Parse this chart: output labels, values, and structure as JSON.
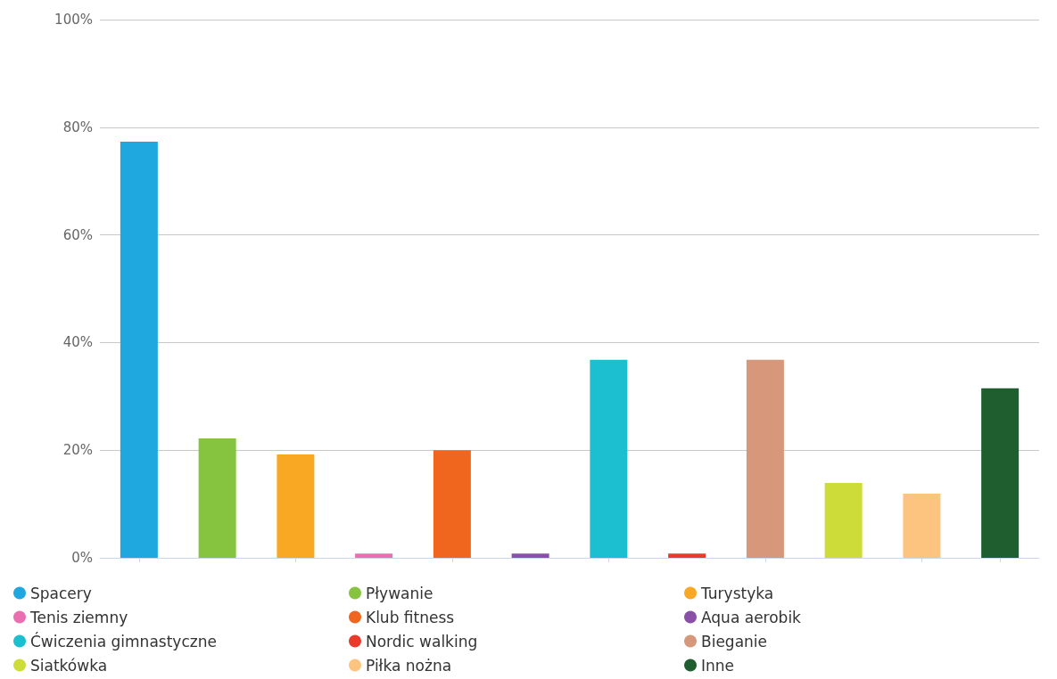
{
  "chart_data": {
    "type": "bar",
    "categories": [
      null,
      null,
      null,
      null,
      null,
      null,
      null,
      null,
      null,
      null,
      null,
      null
    ],
    "series": [
      {
        "name": "Spacery",
        "color": "#1fa8e0",
        "values": [
          77.3,
          null,
          null,
          null,
          null,
          null,
          null,
          null,
          null,
          null,
          null,
          null
        ]
      },
      {
        "name": "Pływanie",
        "color": "#86c440",
        "values": [
          null,
          22.2,
          null,
          null,
          null,
          null,
          null,
          null,
          null,
          null,
          null,
          null
        ]
      },
      {
        "name": "Turystyka",
        "color": "#f9a823",
        "values": [
          null,
          null,
          19.2,
          null,
          null,
          null,
          null,
          null,
          null,
          null,
          null,
          null
        ]
      },
      {
        "name": "Tenis ziemny",
        "color": "#ea6fb0",
        "values": [
          null,
          null,
          null,
          0.8,
          null,
          null,
          null,
          null,
          null,
          null,
          null,
          null
        ]
      },
      {
        "name": "Klub fitness",
        "color": "#f0661f",
        "values": [
          null,
          null,
          null,
          null,
          20,
          null,
          null,
          null,
          null,
          null,
          null,
          null
        ]
      },
      {
        "name": "Aqua aerobik",
        "color": "#8a4fa6",
        "values": [
          null,
          null,
          null,
          null,
          null,
          0.8,
          null,
          null,
          null,
          null,
          null,
          null
        ]
      },
      {
        "name": "Ćwiczenia gimnastyczne",
        "color": "#1bbfcf",
        "values": [
          null,
          null,
          null,
          null,
          null,
          null,
          36.8,
          null,
          null,
          null,
          null,
          null
        ]
      },
      {
        "name": "Nordic walking",
        "color": "#ea3a2c",
        "values": [
          null,
          null,
          null,
          null,
          null,
          null,
          null,
          0.8,
          null,
          null,
          null,
          null
        ]
      },
      {
        "name": "Bieganie",
        "color": "#d6977a",
        "values": [
          null,
          null,
          null,
          null,
          null,
          null,
          null,
          null,
          36.8,
          null,
          null,
          null
        ]
      },
      {
        "name": "Siatkówka",
        "color": "#cddc39",
        "values": [
          null,
          null,
          null,
          null,
          null,
          null,
          null,
          null,
          null,
          13.9,
          null,
          null
        ]
      },
      {
        "name": "Piłka nożna",
        "color": "#fdc47f",
        "values": [
          null,
          null,
          null,
          null,
          null,
          null,
          null,
          null,
          null,
          null,
          11.9,
          null
        ]
      },
      {
        "name": "Inne",
        "color": "#1f5f2f",
        "values": [
          null,
          null,
          null,
          null,
          null,
          null,
          null,
          null,
          null,
          null,
          null,
          31.5
        ]
      }
    ],
    "ylim": [
      0,
      100
    ],
    "yticks": [
      {
        "value": 0,
        "label": "0%"
      },
      {
        "value": 20,
        "label": "20%"
      },
      {
        "value": 40,
        "label": "40%"
      },
      {
        "value": 60,
        "label": "60%"
      },
      {
        "value": 80,
        "label": "80%"
      },
      {
        "value": 100,
        "label": "100%"
      }
    ],
    "grid": "y",
    "legend": "bottom"
  }
}
